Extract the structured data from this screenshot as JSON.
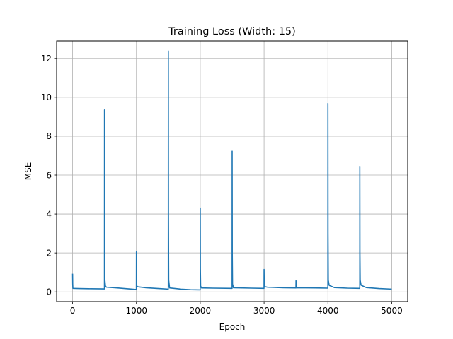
{
  "chart_data": {
    "type": "line",
    "title": "Training Loss (Width: 15)",
    "xlabel": "Epoch",
    "ylabel": "MSE",
    "xlim": [
      -250,
      5250
    ],
    "ylim": [
      -0.5,
      12.9
    ],
    "xticks": [
      0,
      1000,
      2000,
      3000,
      4000,
      5000
    ],
    "yticks": [
      0,
      2,
      4,
      6,
      8,
      10,
      12
    ],
    "grid": true,
    "series": [
      {
        "color": "#1f77b4",
        "points": [
          [
            0,
            0.93
          ],
          [
            2,
            0.4
          ],
          [
            5,
            0.18
          ],
          [
            100,
            0.17
          ],
          [
            250,
            0.16
          ],
          [
            499,
            0.15
          ],
          [
            500,
            9.35
          ],
          [
            502,
            3.0
          ],
          [
            506,
            0.6
          ],
          [
            515,
            0.3
          ],
          [
            530,
            0.24
          ],
          [
            700,
            0.2
          ],
          [
            850,
            0.16
          ],
          [
            999,
            0.12
          ],
          [
            1000,
            2.06
          ],
          [
            1002,
            0.8
          ],
          [
            1006,
            0.3
          ],
          [
            1020,
            0.26
          ],
          [
            1150,
            0.21
          ],
          [
            1350,
            0.17
          ],
          [
            1499,
            0.14
          ],
          [
            1500,
            12.38
          ],
          [
            1502,
            4.0
          ],
          [
            1506,
            0.6
          ],
          [
            1520,
            0.2
          ],
          [
            1700,
            0.14
          ],
          [
            1850,
            0.11
          ],
          [
            1999,
            0.1
          ],
          [
            2000,
            4.31
          ],
          [
            2002,
            1.2
          ],
          [
            2006,
            0.3
          ],
          [
            2020,
            0.2
          ],
          [
            2200,
            0.19
          ],
          [
            2499,
            0.18
          ],
          [
            2500,
            7.23
          ],
          [
            2502,
            2.0
          ],
          [
            2506,
            0.4
          ],
          [
            2520,
            0.21
          ],
          [
            2800,
            0.19
          ],
          [
            2999,
            0.18
          ],
          [
            3000,
            1.15
          ],
          [
            3002,
            0.5
          ],
          [
            3006,
            0.27
          ],
          [
            3050,
            0.24
          ],
          [
            3300,
            0.21
          ],
          [
            3499,
            0.2
          ],
          [
            3500,
            0.57
          ],
          [
            3502,
            0.3
          ],
          [
            3506,
            0.21
          ],
          [
            3800,
            0.2
          ],
          [
            3999,
            0.19
          ],
          [
            4000,
            9.68
          ],
          [
            4002,
            3.0
          ],
          [
            4006,
            0.6
          ],
          [
            4020,
            0.33
          ],
          [
            4100,
            0.22
          ],
          [
            4300,
            0.19
          ],
          [
            4499,
            0.18
          ],
          [
            4500,
            6.45
          ],
          [
            4502,
            2.0
          ],
          [
            4506,
            0.6
          ],
          [
            4520,
            0.34
          ],
          [
            4600,
            0.22
          ],
          [
            4800,
            0.17
          ],
          [
            5000,
            0.14
          ]
        ]
      }
    ]
  }
}
